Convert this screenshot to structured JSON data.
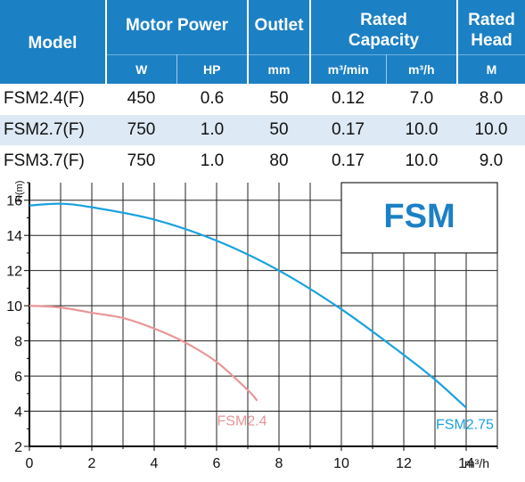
{
  "table": {
    "headers": {
      "model": "Model",
      "motor_power": "Motor Power",
      "outlet": "Outlet",
      "rated_capacity_1": "Rated",
      "rated_capacity_2": "Capacity",
      "rated_head_1": "Rated",
      "rated_head_2": "Head"
    },
    "units": {
      "w": "W",
      "hp": "HP",
      "mm": "mm",
      "m3min": "m³/min",
      "m3h": "m³/h",
      "m": "M"
    },
    "rows": [
      {
        "model": "FSM2.4(F)",
        "w": "450",
        "hp": "0.6",
        "mm": "50",
        "m3min": "0.12",
        "m3h": "7.0",
        "m": "8.0"
      },
      {
        "model": "FSM2.7(F)",
        "w": "750",
        "hp": "1.0",
        "mm": "50",
        "m3min": "0.17",
        "m3h": "10.0",
        "m": "10.0"
      },
      {
        "model": "FSM3.7(F)",
        "w": "750",
        "hp": "1.0",
        "mm": "80",
        "m3min": "0.17",
        "m3h": "10.0",
        "m": "9.0"
      }
    ]
  },
  "chart_data": {
    "type": "line",
    "title": "FSM",
    "xlabel": "m³/h",
    "ylabel": "H(m)",
    "xlim": [
      0,
      15
    ],
    "ylim": [
      2,
      17
    ],
    "x_ticks": [
      "0",
      "2",
      "4",
      "6",
      "8",
      "10",
      "12",
      "14"
    ],
    "y_ticks": [
      "2",
      "4",
      "6",
      "8",
      "10",
      "12",
      "14",
      "16"
    ],
    "grid": true,
    "series": [
      {
        "name": "FSM2.4",
        "color": "#e89595",
        "x": [
          0,
          1,
          2,
          3,
          4,
          5,
          6,
          7,
          7.3
        ],
        "y": [
          10,
          9.9,
          9.6,
          9.3,
          8.7,
          7.9,
          6.8,
          5.2,
          4.6
        ]
      },
      {
        "name": "FSM2.75",
        "color": "#1aa1df",
        "x": [
          0,
          1,
          2,
          4,
          6,
          8,
          10,
          12,
          13,
          14
        ],
        "y": [
          15.7,
          15.8,
          15.6,
          14.9,
          13.7,
          12.0,
          9.8,
          7.2,
          5.8,
          4.2
        ]
      }
    ],
    "colors": {
      "title": "#1c80c4",
      "grid": "#222222"
    }
  }
}
